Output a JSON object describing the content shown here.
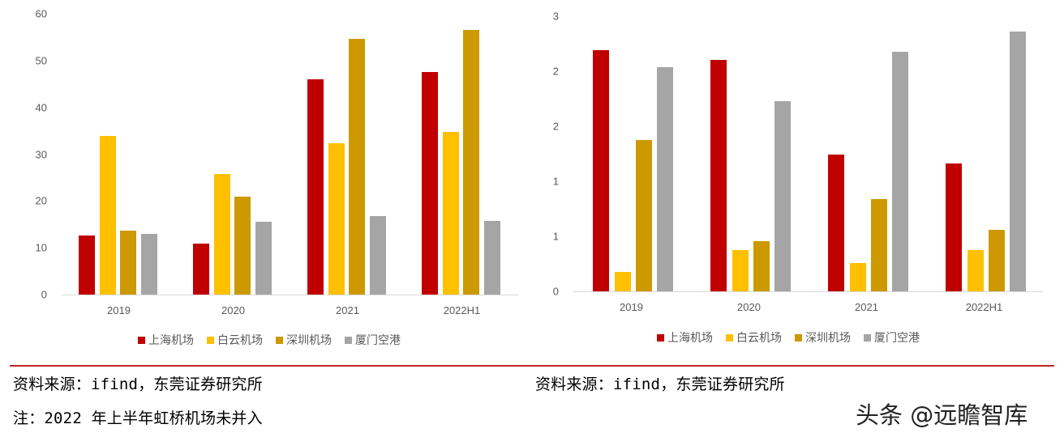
{
  "chart_data": [
    {
      "type": "bar",
      "title": "",
      "xlabel": "",
      "ylabel": "",
      "ylim": [
        0,
        60
      ],
      "yticks": [
        "0",
        "10",
        "20",
        "30",
        "40",
        "50",
        "60"
      ],
      "categories": [
        "2019",
        "2020",
        "2021",
        "2022H1"
      ],
      "series": [
        {
          "name": "上海机场",
          "color": "#c00000",
          "values": [
            12.6,
            10.9,
            46.0,
            47.6
          ]
        },
        {
          "name": "白云机场",
          "color": "#ffc000",
          "values": [
            33.9,
            25.8,
            32.4,
            34.8
          ]
        },
        {
          "name": "深圳机场",
          "color": "#cc9900",
          "values": [
            13.7,
            20.9,
            54.7,
            56.6
          ]
        },
        {
          "name": "厦门空港",
          "color": "#a5a5a5",
          "values": [
            13.0,
            15.6,
            16.8,
            15.7
          ]
        }
      ],
      "grid": false,
      "legend_position": "bottom"
    },
    {
      "type": "bar",
      "title": "",
      "xlabel": "",
      "ylabel": "",
      "ylim": [
        0,
        3
      ],
      "yticks": [
        "0",
        "1",
        "1",
        "2",
        "2",
        "3"
      ],
      "categories": [
        "2019",
        "2020",
        "2021",
        "2022H1"
      ],
      "series": [
        {
          "name": "上海机场",
          "color": "#c00000",
          "values": [
            2.63,
            2.52,
            1.49,
            1.39
          ]
        },
        {
          "name": "白云机场",
          "color": "#ffc000",
          "values": [
            0.21,
            0.45,
            0.31,
            0.45
          ]
        },
        {
          "name": "深圳机场",
          "color": "#cc9900",
          "values": [
            1.65,
            0.55,
            1.01,
            0.67
          ]
        },
        {
          "name": "厦门空港",
          "color": "#a5a5a5",
          "values": [
            2.44,
            2.07,
            2.61,
            2.83
          ]
        }
      ],
      "grid": false,
      "legend_position": "bottom"
    }
  ],
  "footer": {
    "left_source": "资料来源：ifind，东莞证券研究所",
    "left_note": "注：2022 年上半年虹桥机场未并入",
    "right_source": "资料来源：ifind，东莞证券研究所",
    "watermark": "头条 @远瞻智库"
  },
  "colors": {
    "rule": "#c0262b",
    "axis_text": "#595959"
  }
}
